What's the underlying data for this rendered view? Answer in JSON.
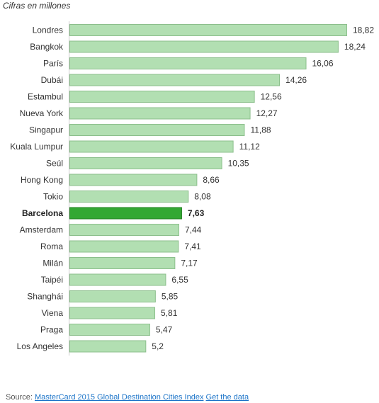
{
  "subtitle": "Cifras en millones",
  "footer": {
    "source_label": "Source:",
    "source_link": "MasterCard 2015 Global Destination Cities Index",
    "data_link": "Get the data"
  },
  "colors": {
    "bar": "#b2dfb2",
    "bar_border": "#8cbf8c",
    "highlight": "#33a833",
    "highlight_border": "#1f7f1f",
    "link": "#1a73c8"
  },
  "chart_data": {
    "type": "bar",
    "orientation": "horizontal",
    "title": "",
    "xlabel": "",
    "ylabel": "",
    "subtitle": "Cifras en millones",
    "categories": [
      "Londres",
      "Bangkok",
      "París",
      "Dubái",
      "Estambul",
      "Nueva York",
      "Singapur",
      "Kuala Lumpur",
      "Seúl",
      "Hong Kong",
      "Tokio",
      "Barcelona",
      "Amsterdam",
      "Roma",
      "Milán",
      "Taipéi",
      "Shanghái",
      "Viena",
      "Praga",
      "Los Angeles"
    ],
    "values": [
      18.82,
      18.24,
      16.06,
      14.26,
      12.56,
      12.27,
      11.88,
      11.12,
      10.35,
      8.66,
      8.08,
      7.63,
      7.44,
      7.41,
      7.17,
      6.55,
      5.85,
      5.81,
      5.47,
      5.2
    ],
    "value_labels": [
      "18,82",
      "18,24",
      "16,06",
      "14,26",
      "12,56",
      "12,27",
      "11,88",
      "11,12",
      "10,35",
      "8,66",
      "8,08",
      "7,63",
      "7,44",
      "7,41",
      "7,17",
      "6,55",
      "5,85",
      "5,81",
      "5,47",
      "5,2"
    ],
    "highlight": "Barcelona",
    "xlim": [
      0,
      18.82
    ],
    "grid": false,
    "legend": "none"
  }
}
